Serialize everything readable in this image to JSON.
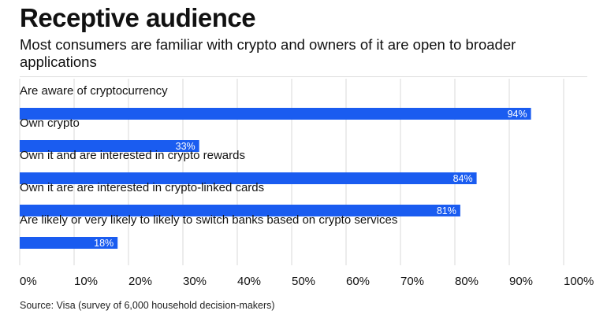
{
  "header": {
    "title": "Receptive audience",
    "subtitle": "Most consumers are familiar with crypto and owners of it are open to broader applications"
  },
  "footer": {
    "source": "Source: Visa (survey of 6,000 household decision-makers)"
  },
  "colors": {
    "bar": "#1a5cf0",
    "bar_label": "#ffffff",
    "grid": "#d9d9d9"
  },
  "chart_data": {
    "type": "bar",
    "orientation": "horizontal",
    "categories": [
      "Are aware of cryptocurrency",
      "Own crypto",
      "Own it and are interested in crypto rewards",
      "Own it are are interested in crypto-linked cards",
      "Are likely or very likely to likely to switch banks based on crypto services"
    ],
    "values": [
      94,
      33,
      84,
      81,
      18
    ],
    "value_labels": [
      "94%",
      "33%",
      "84%",
      "81%",
      "18%"
    ],
    "xlim": [
      0,
      100
    ],
    "xticks": [
      0,
      10,
      20,
      30,
      40,
      50,
      60,
      70,
      80,
      90,
      100
    ],
    "xtick_labels": [
      "0%",
      "10%",
      "20%",
      "30%",
      "40%",
      "50%",
      "60%",
      "70%",
      "80%",
      "90%",
      "100%"
    ],
    "grid": "vertical",
    "legend": "none"
  }
}
